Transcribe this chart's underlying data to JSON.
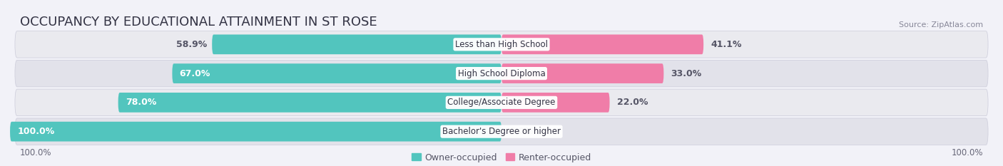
{
  "title": "OCCUPANCY BY EDUCATIONAL ATTAINMENT IN ST ROSE",
  "source": "Source: ZipAtlas.com",
  "categories": [
    "Less than High School",
    "High School Diploma",
    "College/Associate Degree",
    "Bachelor's Degree or higher"
  ],
  "owner_values": [
    58.9,
    67.0,
    78.0,
    100.0
  ],
  "renter_values": [
    41.1,
    33.0,
    22.0,
    0.0
  ],
  "owner_color": "#52C5BE",
  "renter_color": "#F07DA8",
  "renter_color_light": "#F9C0D4",
  "row_bg_color": "#E8E8EF",
  "row_bg_color2": "#DCDCE5",
  "title_fontsize": 13,
  "source_fontsize": 8,
  "bar_label_fontsize": 9,
  "legend_fontsize": 9,
  "axis_label_fontsize": 8.5
}
